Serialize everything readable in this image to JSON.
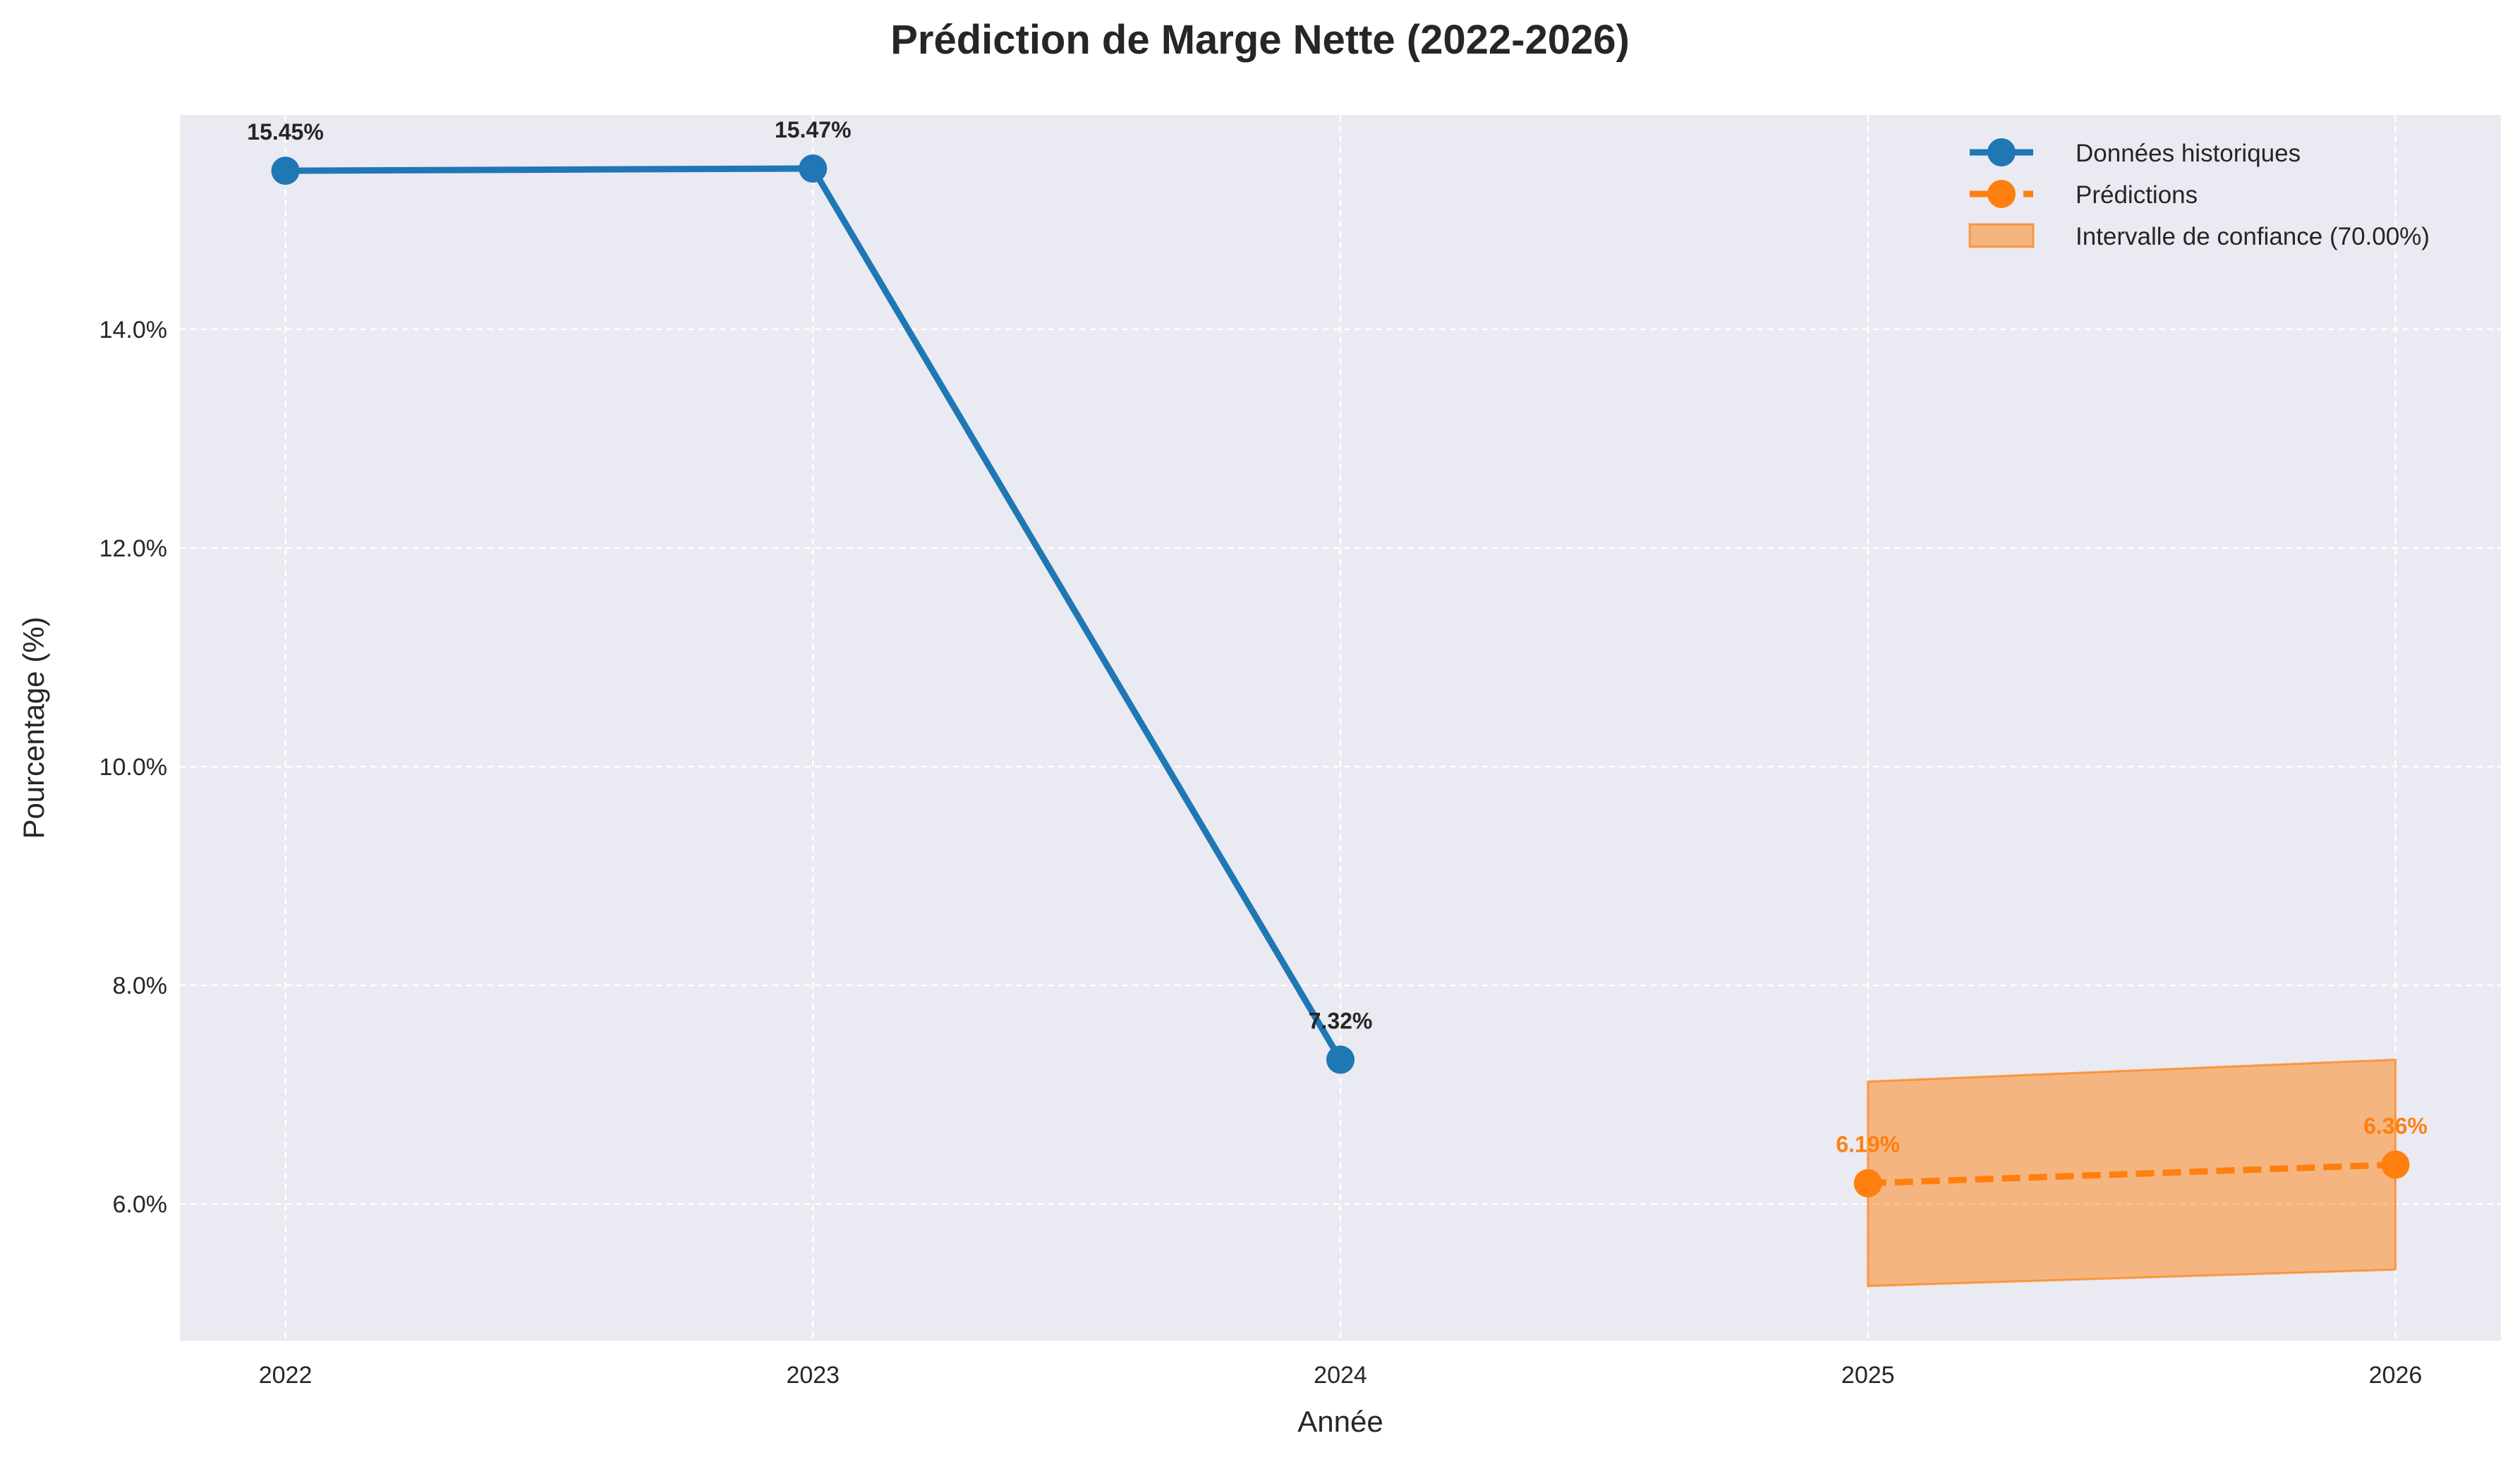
{
  "chart_data": {
    "type": "line",
    "title": "Prédiction de Marge Nette (2022-2026)",
    "xlabel": "Année",
    "ylabel": "Pourcentage (%)",
    "x_ticks": [
      "2022",
      "2023",
      "2024",
      "2025",
      "2026"
    ],
    "y_ticks": [
      "6.0%",
      "8.0%",
      "10.0%",
      "12.0%",
      "14.0%"
    ],
    "y_tick_values": [
      6,
      8,
      10,
      12,
      14
    ],
    "xlim": [
      2021.8,
      2026.2
    ],
    "ylim": [
      4.75,
      15.96
    ],
    "grid": true,
    "legend_position": "top-right",
    "series": [
      {
        "name": "Données historiques",
        "style": "solid",
        "color": "#1f77b4",
        "x": [
          2022,
          2023,
          2024
        ],
        "y": [
          15.45,
          15.47,
          7.32
        ],
        "labels": [
          "15.45%",
          "15.47%",
          "7.32%"
        ]
      },
      {
        "name": "Prédictions",
        "style": "dashed",
        "color": "#ff7f0e",
        "x": [
          2025,
          2026
        ],
        "y": [
          6.19,
          6.36
        ],
        "labels": [
          "6.19%",
          "6.36%"
        ]
      }
    ],
    "confidence_interval": {
      "name": "Intervalle de confiance (70.00%)",
      "color": "#ff7f0e",
      "x": [
        2025,
        2026
      ],
      "lower": [
        5.25,
        5.4
      ],
      "upper": [
        7.12,
        7.32
      ]
    }
  },
  "colors": {
    "background": "#ffffff",
    "plot_background": "#eaeaf2",
    "grid": "#ffffff",
    "text": "#262626"
  }
}
